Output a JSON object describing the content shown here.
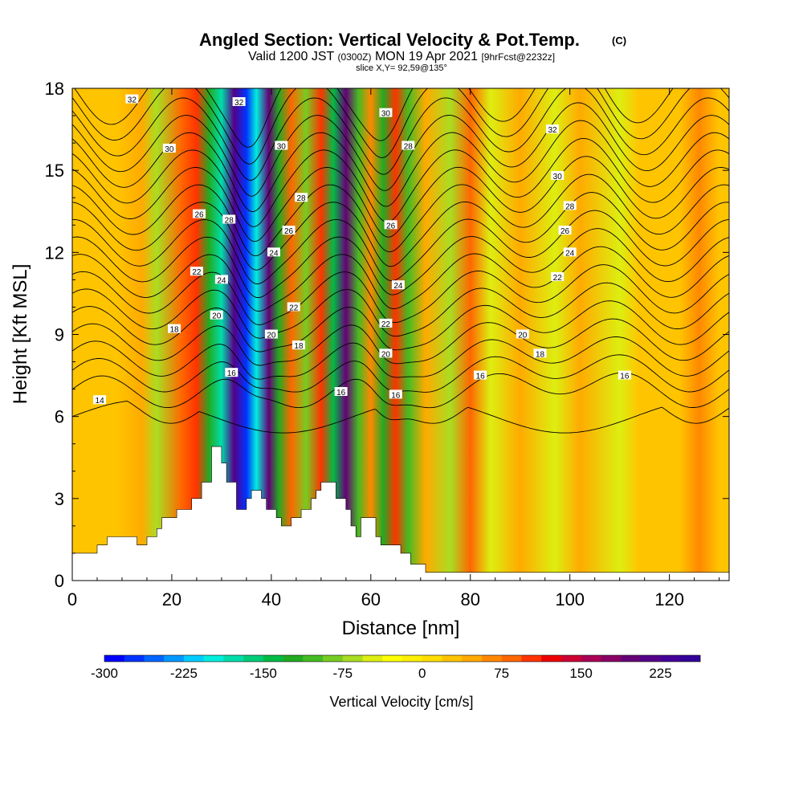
{
  "title": {
    "main": "Angled Section: Vertical Velocity & Pot.Temp.",
    "copyright": "(C)",
    "valid_prefix": "Valid 1200 JST",
    "valid_z": "(0300Z)",
    "valid_date": "MON 19 Apr 2021",
    "valid_fcst": "[9hrFcst@2232z]",
    "slice": "slice X,Y= 92,59@135°"
  },
  "chart_data": {
    "type": "heatmap",
    "xlabel": "Distance [nm]",
    "ylabel": "Height [Kft MSL]",
    "xlim": [
      0,
      132
    ],
    "ylim": [
      0,
      18
    ],
    "xticks": [
      0,
      20,
      40,
      60,
      80,
      100,
      120
    ],
    "yticks": [
      0,
      3,
      6,
      9,
      12,
      15,
      18
    ],
    "colorbar": {
      "title": "Vertical Velocity [cm/s]",
      "labels": [
        -300,
        -225,
        -150,
        -75,
        0,
        75,
        150,
        225
      ],
      "min": -300,
      "max": 262.5,
      "step": 18.75,
      "colors": [
        "#0000ff",
        "#0033ff",
        "#0066ff",
        "#0099ff",
        "#00ccff",
        "#00eedd",
        "#00ddaa",
        "#00cc77",
        "#00bb44",
        "#22aa22",
        "#44bb22",
        "#77cc22",
        "#aadd22",
        "#ddee11",
        "#ffff00",
        "#ffee00",
        "#ffdd00",
        "#ffc400",
        "#ffaa00",
        "#ff8800",
        "#ff6600",
        "#ff3300",
        "#ee0000",
        "#cc0033",
        "#aa0055",
        "#880066",
        "#660077",
        "#550088",
        "#440099",
        "#33009a"
      ]
    },
    "velocity_bands": [
      {
        "x": 9,
        "v": 30
      },
      {
        "x": 14,
        "v": 55
      },
      {
        "x": 17,
        "v": -60
      },
      {
        "x": 22,
        "v": 80
      },
      {
        "x": 25,
        "v": 110
      },
      {
        "x": 27.5,
        "v": -120
      },
      {
        "x": 30,
        "v": -170
      },
      {
        "x": 32.5,
        "v": 220
      },
      {
        "x": 35,
        "v": -280
      },
      {
        "x": 37,
        "v": -190
      },
      {
        "x": 39.5,
        "v": 190
      },
      {
        "x": 41.5,
        "v": -130
      },
      {
        "x": 44,
        "v": 90
      },
      {
        "x": 47,
        "v": -90
      },
      {
        "x": 50,
        "v": 95
      },
      {
        "x": 52.5,
        "v": -140
      },
      {
        "x": 55,
        "v": 200
      },
      {
        "x": 57.5,
        "v": -110
      },
      {
        "x": 60,
        "v": 60
      },
      {
        "x": 62.5,
        "v": -120
      },
      {
        "x": 65,
        "v": 110
      },
      {
        "x": 67.5,
        "v": -100
      },
      {
        "x": 71,
        "v": 45
      },
      {
        "x": 76,
        "v": -70
      },
      {
        "x": 80,
        "v": 80
      },
      {
        "x": 84,
        "v": -40
      },
      {
        "x": 90,
        "v": 50
      },
      {
        "x": 97,
        "v": -45
      },
      {
        "x": 102,
        "v": 40
      },
      {
        "x": 110,
        "v": -55
      },
      {
        "x": 114,
        "v": 35
      },
      {
        "x": 122,
        "v": 30
      },
      {
        "x": 126,
        "v": 70
      },
      {
        "x": 130,
        "v": 20
      }
    ],
    "theta_labels": [
      {
        "text": "32",
        "x": 12,
        "y": 17.6
      },
      {
        "text": "32",
        "x": 33.5,
        "y": 17.5
      },
      {
        "text": "30",
        "x": 63,
        "y": 17.1
      },
      {
        "text": "32",
        "x": 96.5,
        "y": 16.5
      },
      {
        "text": "30",
        "x": 19.5,
        "y": 15.8
      },
      {
        "text": "30",
        "x": 42,
        "y": 15.9
      },
      {
        "text": "28",
        "x": 67.5,
        "y": 15.9
      },
      {
        "text": "30",
        "x": 97.5,
        "y": 14.8
      },
      {
        "text": "28",
        "x": 46,
        "y": 14.0
      },
      {
        "text": "28",
        "x": 100,
        "y": 13.7
      },
      {
        "text": "26",
        "x": 25.5,
        "y": 13.4
      },
      {
        "text": "28",
        "x": 31.5,
        "y": 13.2
      },
      {
        "text": "26",
        "x": 64,
        "y": 13.0
      },
      {
        "text": "26",
        "x": 43.5,
        "y": 12.8
      },
      {
        "text": "26",
        "x": 99,
        "y": 12.8
      },
      {
        "text": "24",
        "x": 40.5,
        "y": 12.0
      },
      {
        "text": "24",
        "x": 100,
        "y": 12.0
      },
      {
        "text": "22",
        "x": 25,
        "y": 11.3
      },
      {
        "text": "24",
        "x": 30,
        "y": 11.0
      },
      {
        "text": "22",
        "x": 97.5,
        "y": 11.1
      },
      {
        "text": "24",
        "x": 65.5,
        "y": 10.8
      },
      {
        "text": "22",
        "x": 44.5,
        "y": 10.0
      },
      {
        "text": "20",
        "x": 29,
        "y": 9.7
      },
      {
        "text": "22",
        "x": 63,
        "y": 9.4
      },
      {
        "text": "18",
        "x": 20.5,
        "y": 9.2
      },
      {
        "text": "20",
        "x": 40,
        "y": 9.0
      },
      {
        "text": "20",
        "x": 90.5,
        "y": 9.0
      },
      {
        "text": "18",
        "x": 45.5,
        "y": 8.6
      },
      {
        "text": "20",
        "x": 63,
        "y": 8.3
      },
      {
        "text": "18",
        "x": 94,
        "y": 8.3
      },
      {
        "text": "16",
        "x": 32,
        "y": 7.6
      },
      {
        "text": "16",
        "x": 82,
        "y": 7.5
      },
      {
        "text": "16",
        "x": 111,
        "y": 7.5
      },
      {
        "text": "16",
        "x": 54,
        "y": 6.9
      },
      {
        "text": "16",
        "x": 65,
        "y": 6.8
      },
      {
        "text": "14",
        "x": 5.5,
        "y": 6.6
      }
    ],
    "theta_levels": [
      14,
      15,
      16,
      17,
      18,
      19,
      20,
      21,
      22,
      23,
      24,
      25,
      26,
      27,
      28,
      29,
      30,
      31,
      32,
      33
    ]
  },
  "terrain": [
    [
      0,
      1.0
    ],
    [
      5,
      1.0
    ],
    [
      5,
      1.3
    ],
    [
      7,
      1.3
    ],
    [
      7,
      1.6
    ],
    [
      13,
      1.6
    ],
    [
      13,
      1.3
    ],
    [
      15,
      1.3
    ],
    [
      15,
      1.6
    ],
    [
      17,
      1.6
    ],
    [
      17,
      1.9
    ],
    [
      18,
      1.9
    ],
    [
      18,
      2.3
    ],
    [
      21,
      2.3
    ],
    [
      21,
      2.6
    ],
    [
      24,
      2.6
    ],
    [
      24,
      3.0
    ],
    [
      26,
      3.0
    ],
    [
      26,
      3.6
    ],
    [
      28,
      3.6
    ],
    [
      28,
      4.9
    ],
    [
      30,
      4.9
    ],
    [
      30,
      4.3
    ],
    [
      31,
      4.3
    ],
    [
      31,
      3.6
    ],
    [
      33,
      3.6
    ],
    [
      33,
      2.6
    ],
    [
      35,
      2.6
    ],
    [
      35,
      3.0
    ],
    [
      36,
      3.0
    ],
    [
      36,
      3.3
    ],
    [
      38,
      3.3
    ],
    [
      38,
      3.0
    ],
    [
      39,
      3.0
    ],
    [
      39,
      2.6
    ],
    [
      41,
      2.6
    ],
    [
      41,
      2.3
    ],
    [
      42,
      2.3
    ],
    [
      42,
      2.0
    ],
    [
      44,
      2.0
    ],
    [
      44,
      2.3
    ],
    [
      46,
      2.3
    ],
    [
      46,
      2.6
    ],
    [
      48,
      2.6
    ],
    [
      48,
      3.0
    ],
    [
      49,
      3.0
    ],
    [
      49,
      3.3
    ],
    [
      50,
      3.3
    ],
    [
      50,
      3.6
    ],
    [
      53,
      3.6
    ],
    [
      53,
      3.0
    ],
    [
      55,
      3.0
    ],
    [
      55,
      2.6
    ],
    [
      56,
      2.6
    ],
    [
      56,
      2.0
    ],
    [
      57,
      2.0
    ],
    [
      57,
      1.6
    ],
    [
      58,
      1.6
    ],
    [
      58,
      2.3
    ],
    [
      61,
      2.3
    ],
    [
      61,
      1.6
    ],
    [
      62,
      1.6
    ],
    [
      62,
      1.3
    ],
    [
      66,
      1.3
    ],
    [
      66,
      1.0
    ],
    [
      68,
      1.0
    ],
    [
      68,
      0.6
    ],
    [
      71,
      0.6
    ],
    [
      71,
      0.3
    ],
    [
      132,
      0.3
    ],
    [
      132,
      0
    ],
    [
      0,
      0
    ]
  ]
}
